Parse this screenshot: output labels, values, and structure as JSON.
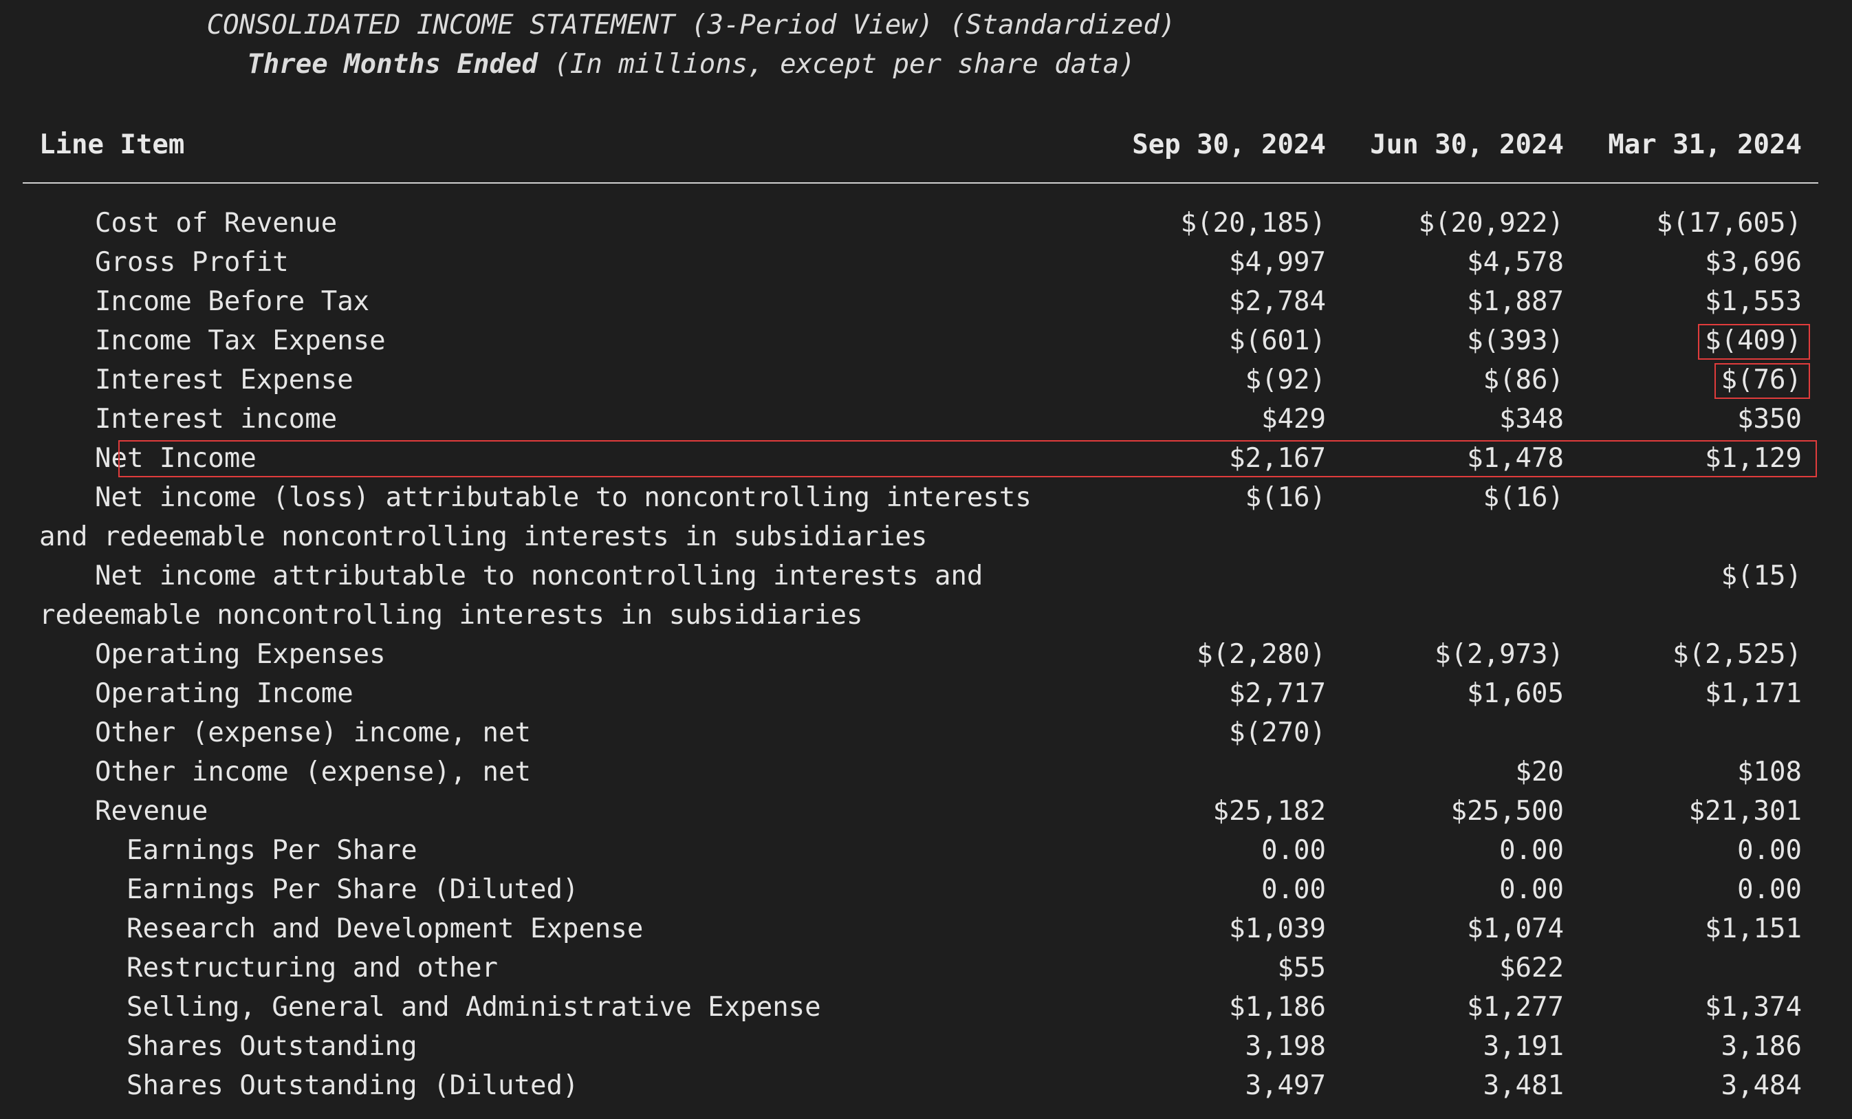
{
  "title": "CONSOLIDATED INCOME STATEMENT (3-Period View) (Standardized)",
  "subtitle_bold": "Three Months Ended",
  "subtitle_rest": " (In millions, except per share data)",
  "columns": {
    "item": "Line Item",
    "periods": [
      "Sep 30, 2024",
      "Jun 30, 2024",
      "Mar 31, 2024"
    ]
  },
  "highlight_color": "#e03c3c",
  "rows": [
    {
      "indent": 1,
      "label": [
        "Cost of Revenue"
      ],
      "values": [
        "$(20,185)",
        "$(20,922)",
        "$(17,605)"
      ]
    },
    {
      "indent": 1,
      "label": [
        "Gross Profit"
      ],
      "values": [
        "$4,997",
        "$4,578",
        "$3,696"
      ]
    },
    {
      "indent": 1,
      "label": [
        "Income Before Tax"
      ],
      "values": [
        "$2,784",
        "$1,887",
        "$1,553"
      ]
    },
    {
      "indent": 1,
      "label": [
        "Income Tax Expense"
      ],
      "values": [
        "$(601)",
        "$(393)",
        "$(409)"
      ],
      "highlight_cells": [
        2
      ]
    },
    {
      "indent": 1,
      "label": [
        "Interest Expense"
      ],
      "values": [
        "$(92)",
        "$(86)",
        "$(76)"
      ],
      "highlight_cells": [
        2
      ]
    },
    {
      "indent": 1,
      "label": [
        "Interest income"
      ],
      "values": [
        "$429",
        "$348",
        "$350"
      ]
    },
    {
      "indent": 1,
      "label": [
        "Net Income"
      ],
      "values": [
        "$2,167",
        "$1,478",
        "$1,129"
      ],
      "highlight_row": true
    },
    {
      "indent": 1,
      "label": [
        "Net income (loss) attributable to noncontrolling interests",
        "and redeemable noncontrolling interests in subsidiaries"
      ],
      "values": [
        "$(16)",
        "$(16)",
        ""
      ]
    },
    {
      "indent": 1,
      "label": [
        "Net income attributable to noncontrolling interests and",
        "redeemable noncontrolling interests in subsidiaries"
      ],
      "values": [
        "",
        "",
        "$(15)"
      ]
    },
    {
      "indent": 1,
      "label": [
        "Operating Expenses"
      ],
      "values": [
        "$(2,280)",
        "$(2,973)",
        "$(2,525)"
      ]
    },
    {
      "indent": 1,
      "label": [
        "Operating Income"
      ],
      "values": [
        "$2,717",
        "$1,605",
        "$1,171"
      ]
    },
    {
      "indent": 1,
      "label": [
        "Other (expense) income, net"
      ],
      "values": [
        "$(270)",
        "",
        ""
      ]
    },
    {
      "indent": 1,
      "label": [
        "Other income (expense), net"
      ],
      "values": [
        "",
        "$20",
        "$108"
      ]
    },
    {
      "indent": 1,
      "label": [
        "Revenue"
      ],
      "values": [
        "$25,182",
        "$25,500",
        "$21,301"
      ]
    },
    {
      "indent": 2,
      "label": [
        "Earnings Per Share"
      ],
      "values": [
        "0.00",
        "0.00",
        "0.00"
      ]
    },
    {
      "indent": 2,
      "label": [
        "Earnings Per Share (Diluted)"
      ],
      "values": [
        "0.00",
        "0.00",
        "0.00"
      ]
    },
    {
      "indent": 2,
      "label": [
        "Research and Development Expense"
      ],
      "values": [
        "$1,039",
        "$1,074",
        "$1,151"
      ]
    },
    {
      "indent": 2,
      "label": [
        "Restructuring and other"
      ],
      "values": [
        "$55",
        "$622",
        ""
      ]
    },
    {
      "indent": 2,
      "label": [
        "Selling, General and Administrative Expense"
      ],
      "values": [
        "$1,186",
        "$1,277",
        "$1,374"
      ]
    },
    {
      "indent": 2,
      "label": [
        "Shares Outstanding"
      ],
      "values": [
        "3,198",
        "3,191",
        "3,186"
      ]
    },
    {
      "indent": 2,
      "label": [
        "Shares Outstanding (Diluted)"
      ],
      "values": [
        "3,497",
        "3,481",
        "3,484"
      ]
    }
  ]
}
